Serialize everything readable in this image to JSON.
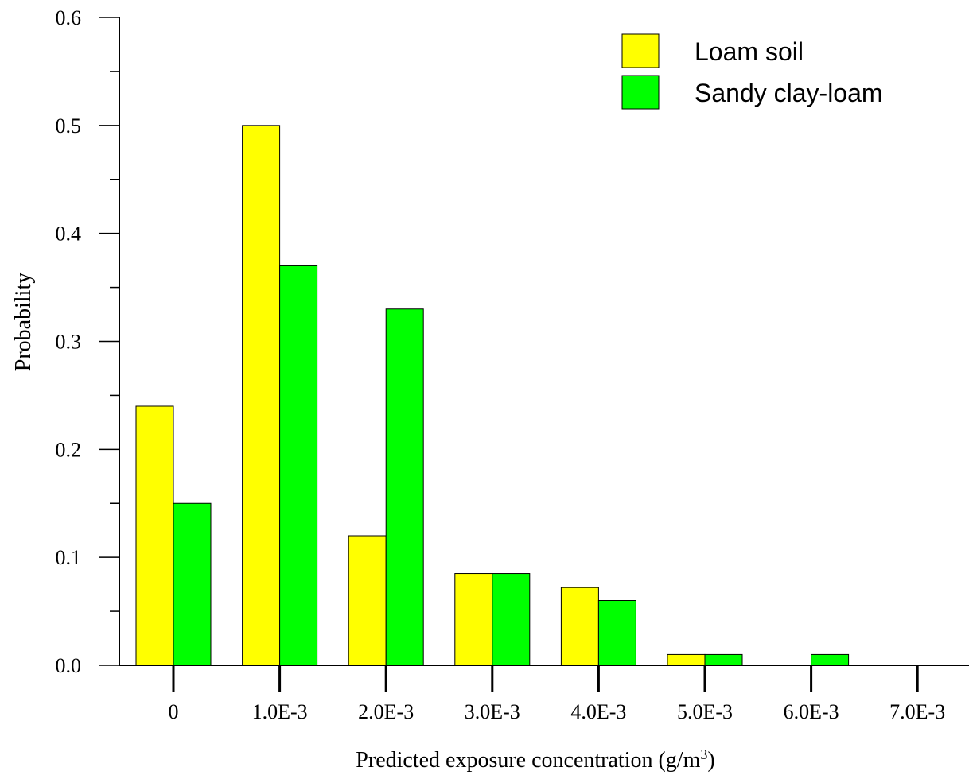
{
  "chart_data": {
    "type": "bar",
    "categories": [
      "0",
      "1.0E-3",
      "2.0E-3",
      "3.0E-3",
      "4.0E-3",
      "5.0E-3",
      "6.0E-3",
      "7.0E-3"
    ],
    "series": [
      {
        "name": "Loam soil",
        "color": "#ffff00",
        "values": [
          0.24,
          0.5,
          0.12,
          0.085,
          0.072,
          0.01,
          0.0,
          0.0
        ]
      },
      {
        "name": "Sandy clay-loam",
        "color": "#00ff00",
        "values": [
          0.15,
          0.37,
          0.33,
          0.085,
          0.06,
          0.01,
          0.01,
          0.0
        ]
      }
    ],
    "y_ticks": [
      "0.0",
      "0.1",
      "0.2",
      "0.3",
      "0.4",
      "0.5",
      "0.6"
    ],
    "ylim": [
      0,
      0.6
    ],
    "xlabel": "Predicted exposure concentration (g/m",
    "xlabel_superscript": "3",
    "xlabel_suffix": ")",
    "ylabel": "Probability",
    "legend_position": "top-right",
    "grid": false
  }
}
